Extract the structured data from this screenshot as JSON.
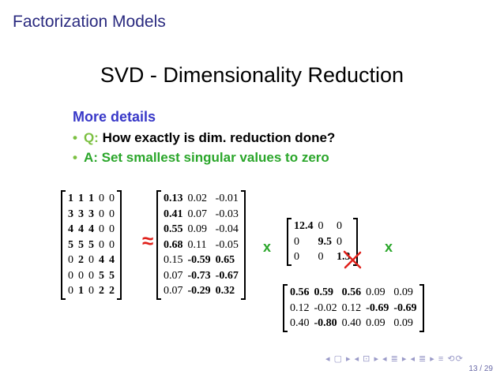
{
  "frame_title": "Factorization Models",
  "slide_heading": "SVD - Dimensionality Reduction",
  "details": {
    "heading": "More details",
    "q_label": "Q:",
    "q_text": "How exactly is dim. reduction done?",
    "a_text": "A: Set smallest singular values to zero"
  },
  "symbols": {
    "approx": "≈",
    "times": "x"
  },
  "matrix_a": [
    [
      {
        "v": "1",
        "b": true
      },
      {
        "v": "1",
        "b": true
      },
      {
        "v": "1",
        "b": true
      },
      {
        "v": "0",
        "b": false
      },
      {
        "v": "0",
        "b": false
      }
    ],
    [
      {
        "v": "3",
        "b": true
      },
      {
        "v": "3",
        "b": true
      },
      {
        "v": "3",
        "b": true
      },
      {
        "v": "0",
        "b": false
      },
      {
        "v": "0",
        "b": false
      }
    ],
    [
      {
        "v": "4",
        "b": true
      },
      {
        "v": "4",
        "b": true
      },
      {
        "v": "4",
        "b": true
      },
      {
        "v": "0",
        "b": false
      },
      {
        "v": "0",
        "b": false
      }
    ],
    [
      {
        "v": "5",
        "b": true
      },
      {
        "v": "5",
        "b": true
      },
      {
        "v": "5",
        "b": true
      },
      {
        "v": "0",
        "b": false
      },
      {
        "v": "0",
        "b": false
      }
    ],
    [
      {
        "v": "0",
        "b": false
      },
      {
        "v": "2",
        "b": true
      },
      {
        "v": "0",
        "b": false
      },
      {
        "v": "4",
        "b": true
      },
      {
        "v": "4",
        "b": true
      }
    ],
    [
      {
        "v": "0",
        "b": false
      },
      {
        "v": "0",
        "b": false
      },
      {
        "v": "0",
        "b": false
      },
      {
        "v": "5",
        "b": true
      },
      {
        "v": "5",
        "b": true
      }
    ],
    [
      {
        "v": "0",
        "b": false
      },
      {
        "v": "1",
        "b": true
      },
      {
        "v": "0",
        "b": false
      },
      {
        "v": "2",
        "b": true
      },
      {
        "v": "2",
        "b": true
      }
    ]
  ],
  "matrix_u": [
    [
      {
        "v": "0.13",
        "b": true
      },
      {
        "v": "0.02",
        "b": false
      },
      {
        "v": "-0.01",
        "b": false
      }
    ],
    [
      {
        "v": "0.41",
        "b": true
      },
      {
        "v": "0.07",
        "b": false
      },
      {
        "v": "-0.03",
        "b": false
      }
    ],
    [
      {
        "v": "0.55",
        "b": true
      },
      {
        "v": "0.09",
        "b": false
      },
      {
        "v": "-0.04",
        "b": false
      }
    ],
    [
      {
        "v": "0.68",
        "b": true
      },
      {
        "v": "0.11",
        "b": false
      },
      {
        "v": "-0.05",
        "b": false
      }
    ],
    [
      {
        "v": "0.15",
        "b": false
      },
      {
        "v": "-0.59",
        "b": true
      },
      {
        "v": "0.65",
        "b": true
      }
    ],
    [
      {
        "v": "0.07",
        "b": false
      },
      {
        "v": "-0.73",
        "b": true
      },
      {
        "v": "-0.67",
        "b": true
      }
    ],
    [
      {
        "v": "0.07",
        "b": false
      },
      {
        "v": "-0.29",
        "b": true
      },
      {
        "v": "0.32",
        "b": true
      }
    ]
  ],
  "matrix_s": [
    [
      {
        "v": "12.4",
        "b": true
      },
      {
        "v": "0",
        "b": false
      },
      {
        "v": "0",
        "b": false
      }
    ],
    [
      {
        "v": "0",
        "b": false
      },
      {
        "v": "9.5",
        "b": true
      },
      {
        "v": "0",
        "b": false
      }
    ],
    [
      {
        "v": "0",
        "b": false
      },
      {
        "v": "0",
        "b": false
      },
      {
        "v": "1.3",
        "b": true
      }
    ]
  ],
  "matrix_v": [
    [
      {
        "v": "0.56",
        "b": true
      },
      {
        "v": "0.59",
        "b": true
      },
      {
        "v": "0.56",
        "b": true
      },
      {
        "v": "0.09",
        "b": false
      },
      {
        "v": "0.09",
        "b": false
      }
    ],
    [
      {
        "v": "0.12",
        "b": false
      },
      {
        "v": "-0.02",
        "b": false
      },
      {
        "v": "0.12",
        "b": false
      },
      {
        "v": "-0.69",
        "b": true
      },
      {
        "v": "-0.69",
        "b": true
      }
    ],
    [
      {
        "v": "0.40",
        "b": false
      },
      {
        "v": "-0.80",
        "b": true
      },
      {
        "v": "0.40",
        "b": false
      },
      {
        "v": "0.09",
        "b": false
      },
      {
        "v": "0.09",
        "b": false
      }
    ]
  ],
  "strike_color": "#e0201a",
  "nav_symbols": "◂ ▢ ▸ ◂ ⊡ ▸ ◂ ≣ ▸ ◂ ≣ ▸   ≡   ⟲⟳",
  "page_number": "13 / 29"
}
